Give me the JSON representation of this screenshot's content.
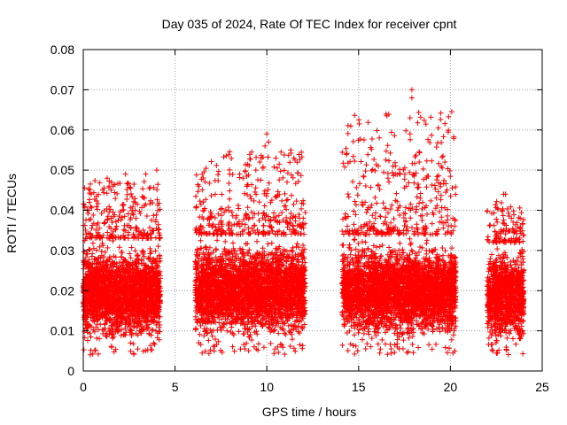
{
  "chart_data": {
    "type": "scatter",
    "title": "Day 035 of 2024, Rate Of TEC Index for receiver cpnt",
    "xlabel": "GPS time / hours",
    "ylabel": "ROTI / TECUs",
    "xlim": [
      0,
      25
    ],
    "ylim": [
      0,
      0.08
    ],
    "x_ticks": [
      0,
      5,
      10,
      15,
      20,
      25
    ],
    "y_ticks": [
      0,
      0.01,
      0.02,
      0.03,
      0.04,
      0.05,
      0.06,
      0.07,
      0.08
    ],
    "x_tick_labels": [
      "0",
      "5",
      "10",
      "15",
      "20",
      "25"
    ],
    "y_tick_labels": [
      "0",
      "0.01",
      "0.02",
      "0.03",
      "0.04",
      "0.05",
      "0.06",
      "0.07",
      "0.08"
    ],
    "grid": true,
    "marker": "+",
    "color": "#ff0000",
    "series": [
      {
        "name": "ROTI",
        "segments": [
          {
            "x_range": [
              0.0,
              4.2
            ],
            "typical": [
              0.006,
              0.033
            ],
            "max": 0.05
          },
          {
            "x_range": [
              6.1,
              12.1
            ],
            "typical": [
              0.006,
              0.034
            ],
            "max": 0.059
          },
          {
            "x_range": [
              14.1,
              20.3
            ],
            "typical": [
              0.006,
              0.034
            ],
            "max": 0.07
          },
          {
            "x_range": [
              22.0,
              24.0
            ],
            "typical": [
              0.005,
              0.032
            ],
            "max": 0.044
          }
        ],
        "notable_points": [
          {
            "x": 0.3,
            "y": 0.04
          },
          {
            "x": 1.3,
            "y": 0.048
          },
          {
            "x": 2.3,
            "y": 0.049
          },
          {
            "x": 3.4,
            "y": 0.049
          },
          {
            "x": 4.0,
            "y": 0.05
          },
          {
            "x": 6.3,
            "y": 0.046
          },
          {
            "x": 8.7,
            "y": 0.048
          },
          {
            "x": 9.4,
            "y": 0.05
          },
          {
            "x": 9.7,
            "y": 0.053
          },
          {
            "x": 9.9,
            "y": 0.056
          },
          {
            "x": 10.0,
            "y": 0.059
          },
          {
            "x": 10.1,
            "y": 0.057
          },
          {
            "x": 11.3,
            "y": 0.055
          },
          {
            "x": 11.1,
            "y": 0.047
          },
          {
            "x": 15.2,
            "y": 0.042
          },
          {
            "x": 16.6,
            "y": 0.048
          },
          {
            "x": 17.0,
            "y": 0.049
          },
          {
            "x": 17.8,
            "y": 0.059
          },
          {
            "x": 17.8,
            "y": 0.063
          },
          {
            "x": 17.9,
            "y": 0.068
          },
          {
            "x": 17.9,
            "y": 0.07
          },
          {
            "x": 18.3,
            "y": 0.052
          },
          {
            "x": 19.5,
            "y": 0.051
          },
          {
            "x": 19.7,
            "y": 0.052
          },
          {
            "x": 22.9,
            "y": 0.044
          },
          {
            "x": 23.0,
            "y": 0.044
          },
          {
            "x": 23.8,
            "y": 0.038
          }
        ]
      }
    ]
  }
}
